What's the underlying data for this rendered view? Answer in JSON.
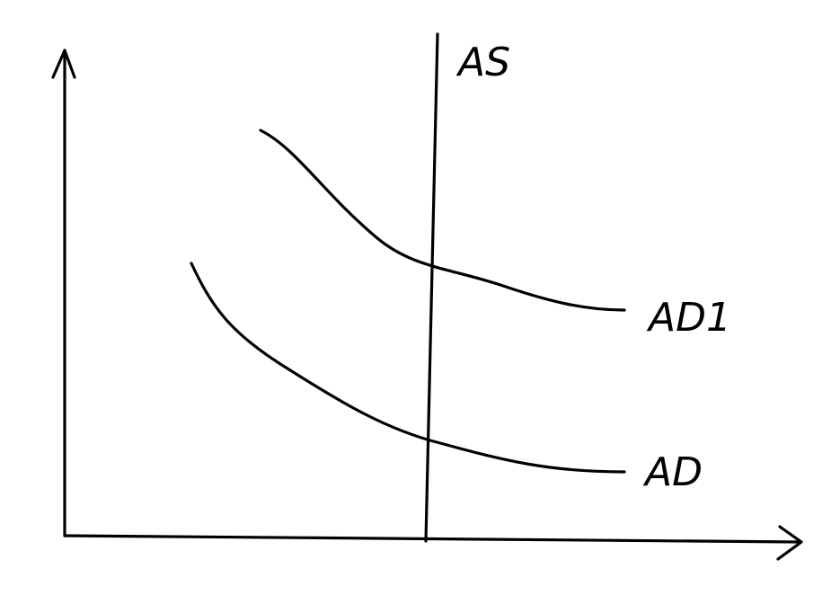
{
  "diagram": {
    "labels": {
      "as": "AS",
      "ad1": "AD1",
      "ad": "AD"
    }
  }
}
